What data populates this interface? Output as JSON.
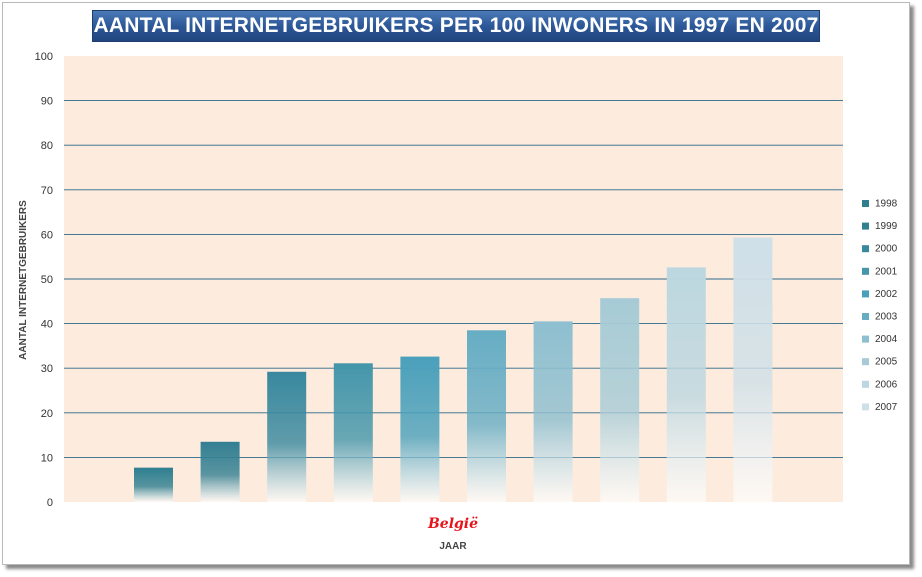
{
  "chart_data": {
    "type": "bar",
    "title": "AANTAL INTERNETGEBRUIKERS PER 100 INWONERS IN 1997 EN 2007",
    "categories": [
      "België"
    ],
    "xlabel": "JAAR",
    "ylabel": "AANTAL INTERNETGEBRUIKERS",
    "ylim": [
      0,
      100
    ],
    "yticks": [
      0,
      10,
      20,
      30,
      40,
      50,
      60,
      70,
      80,
      90,
      100
    ],
    "grid": true,
    "legend": "right",
    "series": [
      {
        "name": "1998",
        "values": [
          7.7
        ],
        "color": "#2e7f90"
      },
      {
        "name": "1999",
        "values": [
          13.5
        ],
        "color": "#327f92"
      },
      {
        "name": "2000",
        "values": [
          29.2
        ],
        "color": "#38889e"
      },
      {
        "name": "2001",
        "values": [
          31.1
        ],
        "color": "#4496aa"
      },
      {
        "name": "2002",
        "values": [
          32.6
        ],
        "color": "#4aa0bb"
      },
      {
        "name": "2003",
        "values": [
          38.5
        ],
        "color": "#66adc4"
      },
      {
        "name": "2004",
        "values": [
          40.5
        ],
        "color": "#8ebfd0"
      },
      {
        "name": "2005",
        "values": [
          45.7
        ],
        "color": "#a6cbd6"
      },
      {
        "name": "2006",
        "values": [
          52.6
        ],
        "color": "#bcd7e0"
      },
      {
        "name": "2007",
        "values": [
          59.3
        ],
        "color": "#cfe0e8"
      }
    ]
  },
  "colors": {
    "plot_background": "#fdebdd",
    "gridline": "#2c6a8a",
    "category_label": "#e8141b",
    "title_background": "#2b5595"
  }
}
